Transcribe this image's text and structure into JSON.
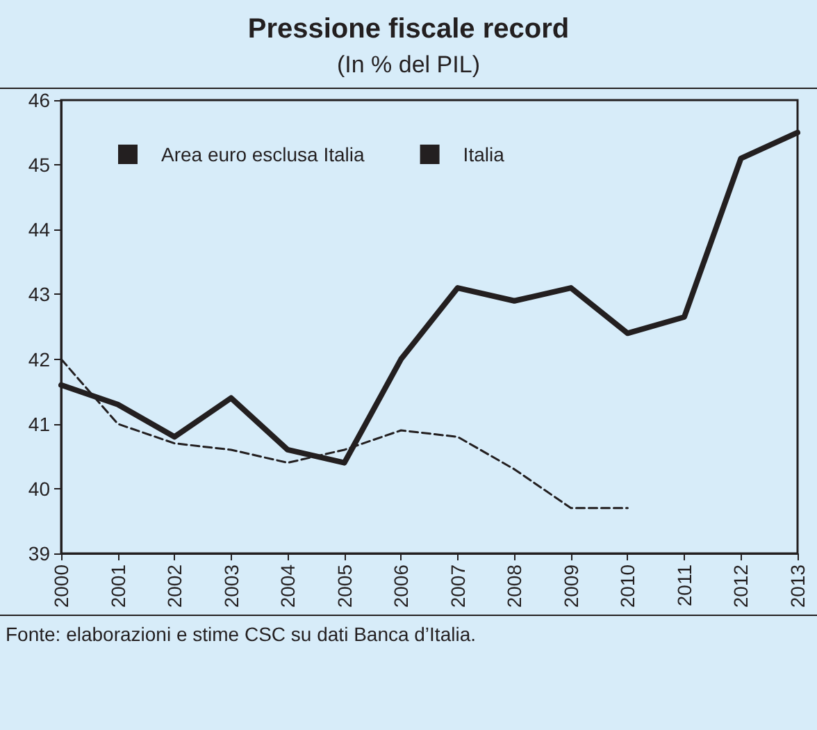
{
  "chart_data": {
    "type": "line",
    "title": "Pressione fiscale record",
    "subtitle": "(In % del PIL)",
    "categories": [
      "2000",
      "2001",
      "2002",
      "2003",
      "2004",
      "2005",
      "2006",
      "2007",
      "2008",
      "2009",
      "2010",
      "2011",
      "2012",
      "2013"
    ],
    "series": [
      {
        "name": "Area euro esclusa Italia",
        "color": "#231f20",
        "line_style": "dashed",
        "values": [
          42.0,
          41.0,
          40.7,
          40.6,
          40.4,
          40.6,
          40.9,
          40.8,
          40.3,
          39.7,
          39.7,
          null,
          null,
          null
        ]
      },
      {
        "name": "Italia",
        "color": "#231f20",
        "line_style": "solid",
        "values": [
          41.6,
          41.3,
          40.8,
          41.4,
          40.6,
          40.4,
          42.0,
          43.1,
          42.9,
          43.1,
          42.4,
          42.65,
          45.1,
          45.5
        ]
      }
    ],
    "ylim": [
      39,
      46
    ],
    "yticks": [
      39,
      40,
      41,
      42,
      43,
      44,
      45,
      46
    ],
    "grid": false,
    "legend": "top left",
    "marker": "none",
    "annotations": [
      "Fonte: elaborazioni e stime CSC su dati Banca d’Italia."
    ]
  }
}
